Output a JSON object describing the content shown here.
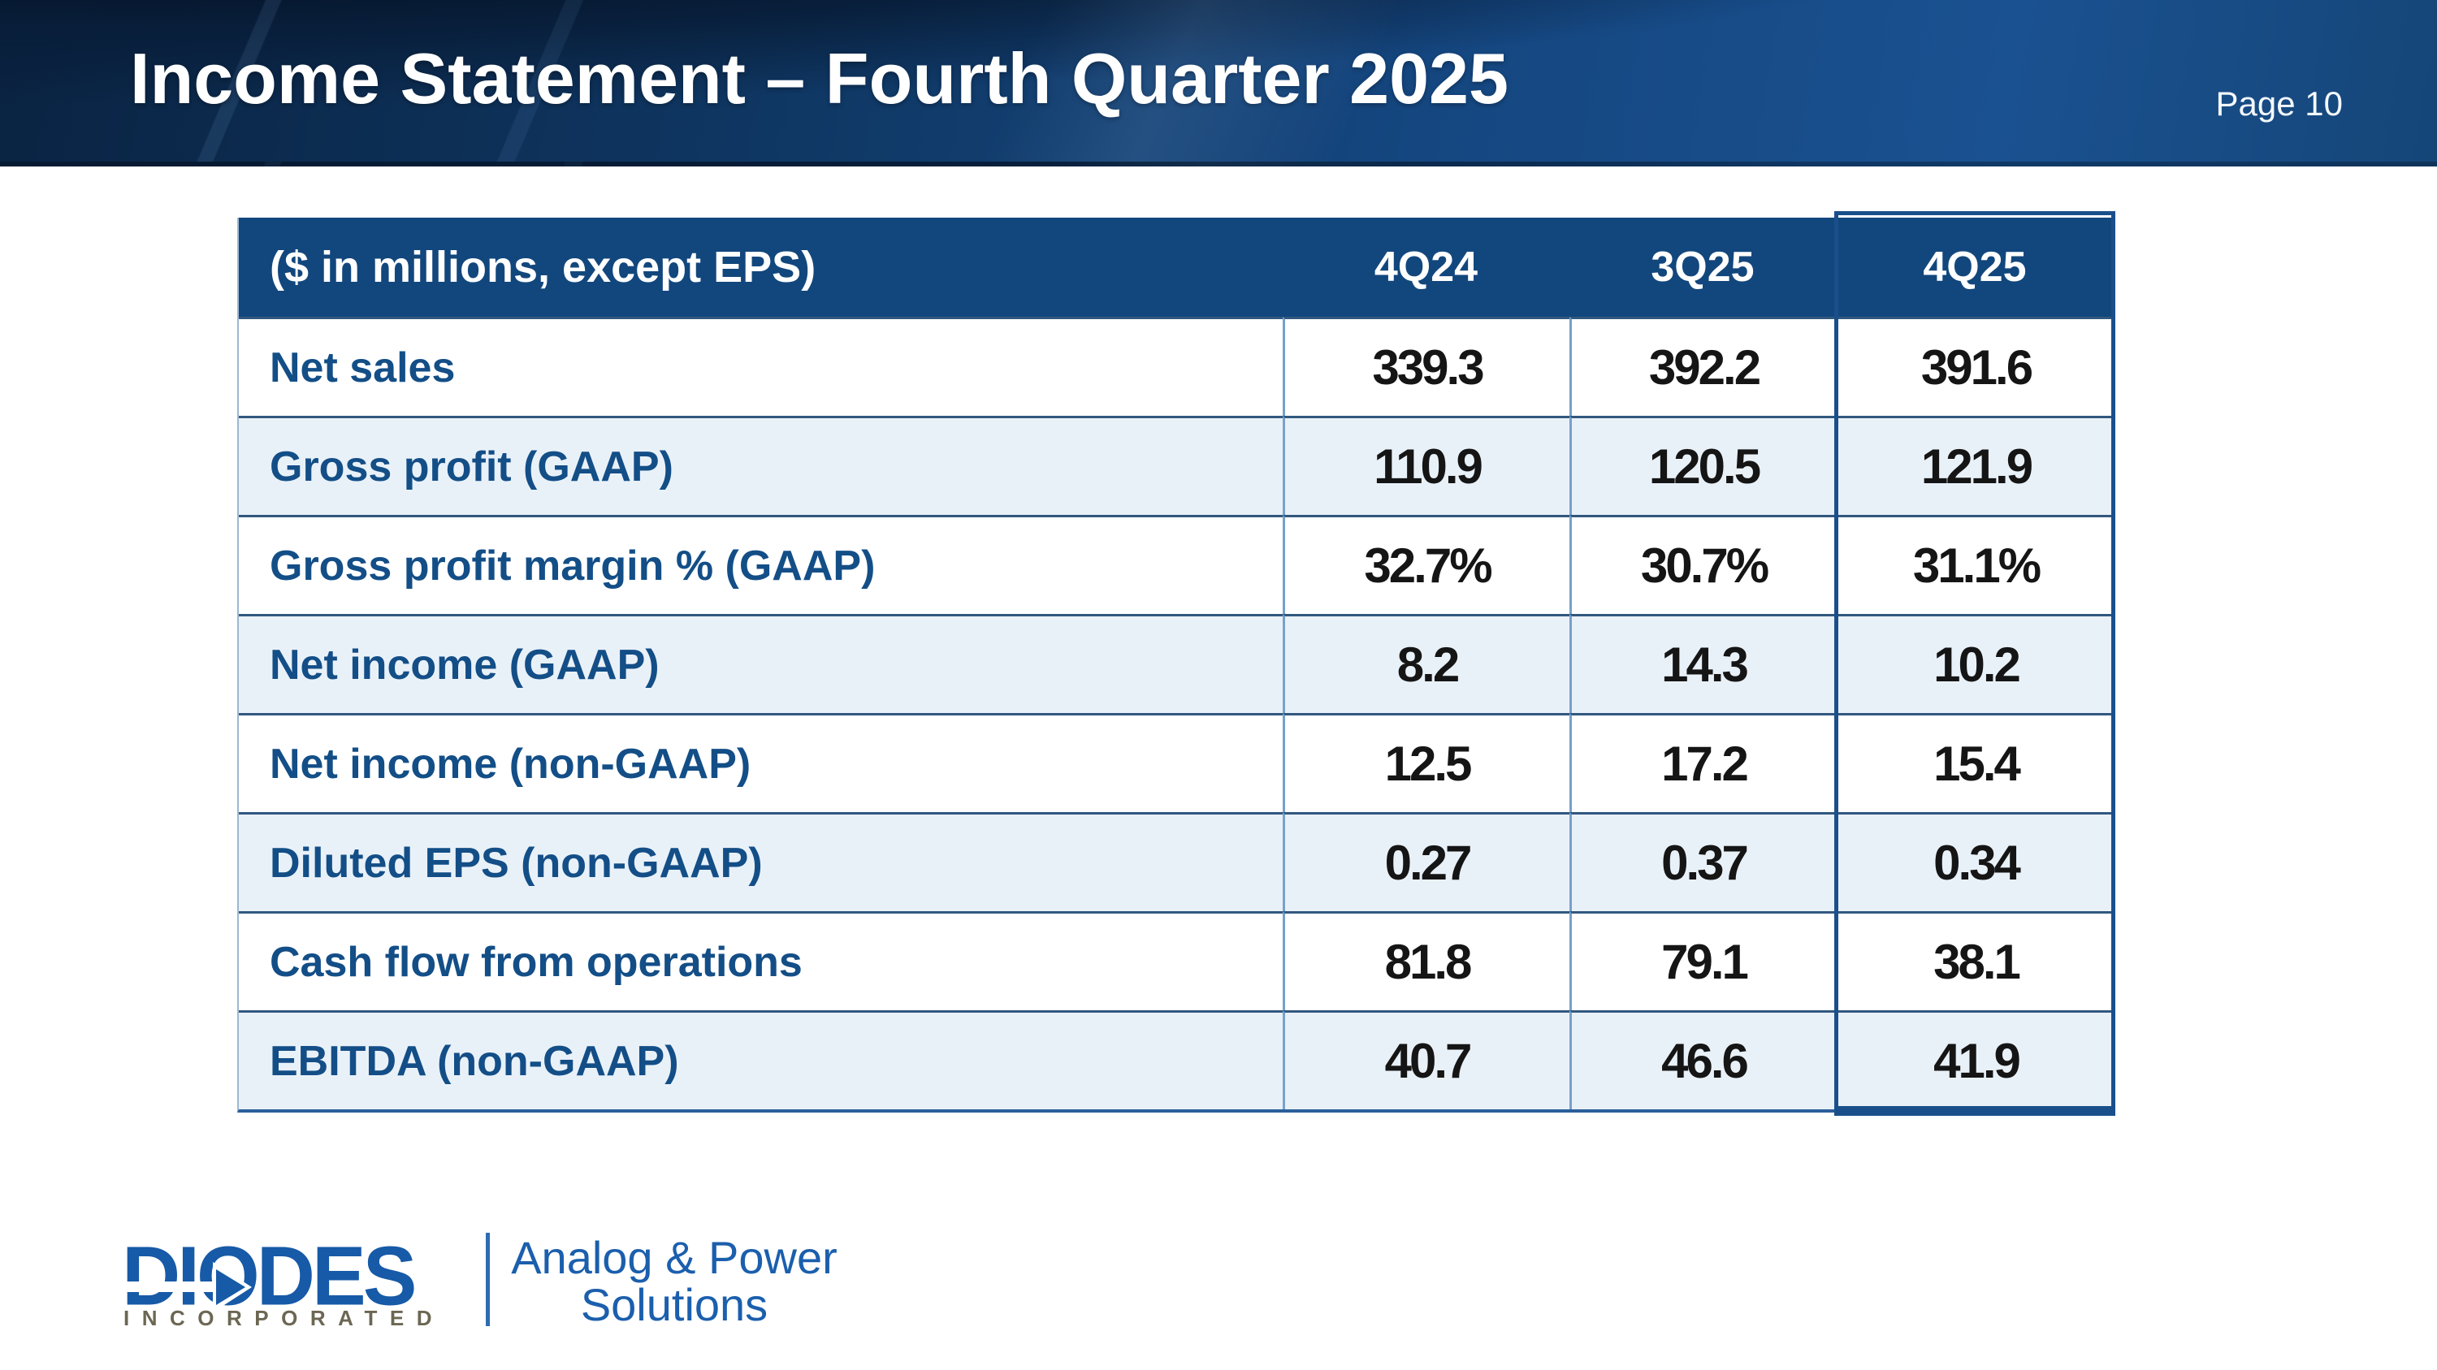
{
  "header": {
    "title": "Income Statement – Fourth Quarter 2025",
    "page_label": "Page 10"
  },
  "table": {
    "caption": "($ in millions, except EPS)",
    "columns": [
      "4Q24",
      "3Q25",
      "4Q25"
    ],
    "highlighted_column": "4Q25",
    "rows": [
      {
        "label": "Net sales",
        "values": [
          "339.3",
          "392.2",
          "391.6"
        ]
      },
      {
        "label": "Gross profit (GAAP)",
        "values": [
          "110.9",
          "120.5",
          "121.9"
        ]
      },
      {
        "label": "Gross profit margin % (GAAP)",
        "values": [
          "32.7%",
          "30.7%",
          "31.1%"
        ]
      },
      {
        "label": "Net income (GAAP)",
        "values": [
          "8.2",
          "14.3",
          "10.2"
        ]
      },
      {
        "label": "Net income (non-GAAP)",
        "values": [
          "12.5",
          "17.2",
          "15.4"
        ]
      },
      {
        "label": "Diluted EPS (non-GAAP)",
        "values": [
          "0.27",
          "0.37",
          "0.34"
        ]
      },
      {
        "label": "Cash flow from operations",
        "values": [
          "81.8",
          "79.1",
          "38.1"
        ]
      },
      {
        "label": "EBITDA (non-GAAP)",
        "values": [
          "40.7",
          "46.6",
          "41.9"
        ]
      }
    ]
  },
  "footer": {
    "logo_word": "DIODES",
    "logo_sub": "INCORPORATED",
    "tagline_line1": "Analog & Power",
    "tagline_line2": "Solutions"
  },
  "colors": {
    "banner_navy_dark": "#0a2342",
    "banner_navy_light": "#1a5190",
    "table_header_navy": "#12477d",
    "row_alt_blue": "#e9f1f8",
    "row_separator": "#31587f",
    "column_separator": "#76a1cb",
    "label_blue": "#134e87",
    "value_black": "#151515",
    "highlight_border_blue": "#1a4f8b",
    "logo_blue": "#175aa7",
    "incorporated_grey": "#6c6753",
    "tagline_blue": "#1b5fad"
  }
}
